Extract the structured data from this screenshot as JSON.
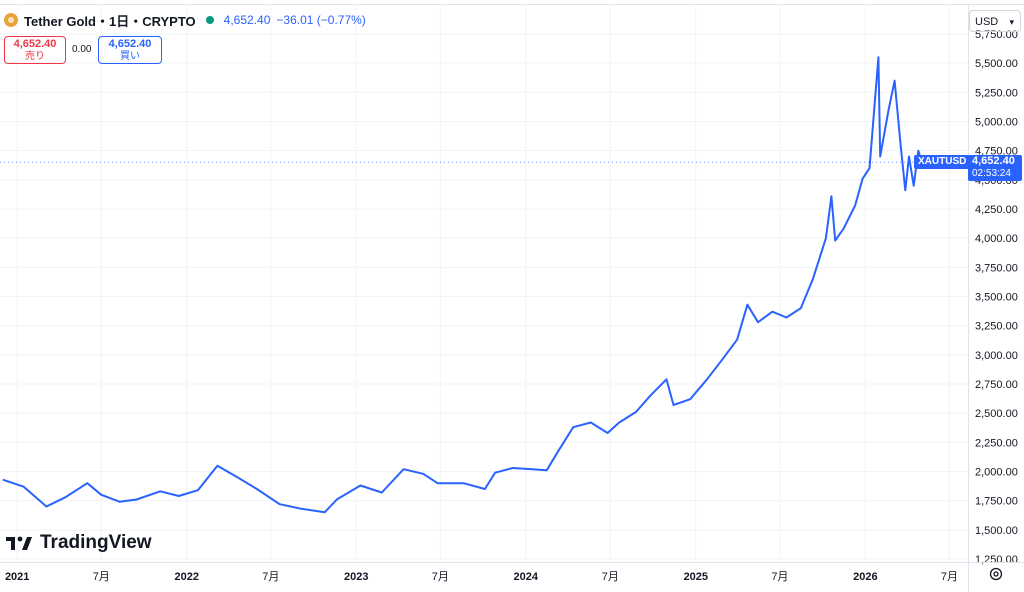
{
  "header": {
    "title": "Tether Gold・1日・CRYPTO",
    "last": "4,652.40",
    "change": "−36.01 (−0.77%)"
  },
  "trade": {
    "sell_price": "4,652.40",
    "sell_label": "売り",
    "spread": "0.00",
    "buy_price": "4,652.40",
    "buy_label": "買い"
  },
  "currency": "USD",
  "symbol_label": "XAUTUSD",
  "price_tag": {
    "price": "4,652.40",
    "countdown": "02:53:24"
  },
  "watermark": "TradingView",
  "colors": {
    "line": "#2962ff",
    "up": "#089981",
    "down": "#f23645",
    "grid": "#f0f3fa",
    "logo": "#e8a33d"
  },
  "icons": {
    "logo": "tether-gold-coin-icon",
    "settings": "gear-icon",
    "dropdown": "chevron-down-icon",
    "tv": "tradingview-logo-icon"
  },
  "chart_data": {
    "type": "line",
    "series": [
      {
        "name": "XAUTUSD",
        "x": [
          "2020-12-01",
          "2021-01-15",
          "2021-03-05",
          "2021-04-15",
          "2021-06-01",
          "2021-07-01",
          "2021-08-10",
          "2021-09-15",
          "2021-11-05",
          "2021-12-15",
          "2022-01-25",
          "2022-03-08",
          "2022-04-20",
          "2022-06-01",
          "2022-07-20",
          "2022-09-05",
          "2022-10-25",
          "2022-11-20",
          "2023-01-10",
          "2023-02-25",
          "2023-04-13",
          "2023-05-25",
          "2023-06-25",
          "2023-08-20",
          "2023-10-05",
          "2023-10-27",
          "2023-12-04",
          "2024-01-15",
          "2024-02-15",
          "2024-03-10",
          "2024-04-12",
          "2024-05-20",
          "2024-06-25",
          "2024-07-20",
          "2024-08-25",
          "2024-09-25",
          "2024-10-30",
          "2024-11-14",
          "2024-12-20",
          "2025-01-25",
          "2025-02-25",
          "2025-03-31",
          "2025-04-22",
          "2025-05-15",
          "2025-06-15",
          "2025-07-15",
          "2025-08-15",
          "2025-09-10",
          "2025-10-08",
          "2025-10-20",
          "2025-10-28",
          "2025-11-15",
          "2025-12-10",
          "2025-12-26",
          "2026-01-10",
          "2026-01-29",
          "2026-02-02",
          "2026-02-20",
          "2026-03-05",
          "2026-03-18",
          "2026-03-28",
          "2026-04-05",
          "2026-04-15",
          "2026-04-25",
          "2026-05-02"
        ],
        "y": [
          1930,
          1870,
          1700,
          1780,
          1900,
          1800,
          1740,
          1760,
          1830,
          1790,
          1840,
          2050,
          1950,
          1850,
          1720,
          1680,
          1650,
          1760,
          1880,
          1820,
          2020,
          1980,
          1900,
          1900,
          1850,
          1990,
          2030,
          2020,
          2010,
          2170,
          2380,
          2420,
          2330,
          2420,
          2510,
          2650,
          2790,
          2570,
          2620,
          2790,
          2950,
          3130,
          3430,
          3280,
          3370,
          3320,
          3400,
          3650,
          4000,
          4360,
          3980,
          4080,
          4280,
          4510,
          4600,
          5550,
          4700,
          5100,
          5350,
          4800,
          4410,
          4700,
          4450,
          4750,
          4652
        ]
      }
    ],
    "ylim": [
      1250,
      5750
    ],
    "y_ticks": [
      "1,250.00",
      "1,500.00",
      "1,750.00",
      "2,000.00",
      "2,250.00",
      "2,500.00",
      "2,750.00",
      "3,000.00",
      "3,250.00",
      "3,500.00",
      "3,750.00",
      "4,000.00",
      "4,250.00",
      "4,500.00",
      "4,750.00",
      "5,000.00",
      "5,250.00",
      "5,500.00",
      "5,750.00"
    ],
    "y_tick_values": [
      1250,
      1500,
      1750,
      2000,
      2250,
      2500,
      2750,
      3000,
      3250,
      3500,
      3750,
      4000,
      4250,
      4500,
      4750,
      5000,
      5250,
      5500,
      5750
    ],
    "x_ticks": [
      {
        "label": "2021",
        "date": "2021-01-01"
      },
      {
        "label": "7月",
        "date": "2021-07-01"
      },
      {
        "label": "2022",
        "date": "2022-01-01"
      },
      {
        "label": "7月",
        "date": "2022-07-01"
      },
      {
        "label": "2023",
        "date": "2023-01-01"
      },
      {
        "label": "7月",
        "date": "2023-07-01"
      },
      {
        "label": "2024",
        "date": "2024-01-01"
      },
      {
        "label": "7月",
        "date": "2024-07-01"
      },
      {
        "label": "2025",
        "date": "2025-01-01"
      },
      {
        "label": "7月",
        "date": "2025-07-01"
      },
      {
        "label": "2026",
        "date": "2026-01-01"
      },
      {
        "label": "7月",
        "date": "2026-07-01"
      }
    ],
    "x_range": [
      "2020-11-25",
      "2026-08-10"
    ],
    "grid": true
  }
}
